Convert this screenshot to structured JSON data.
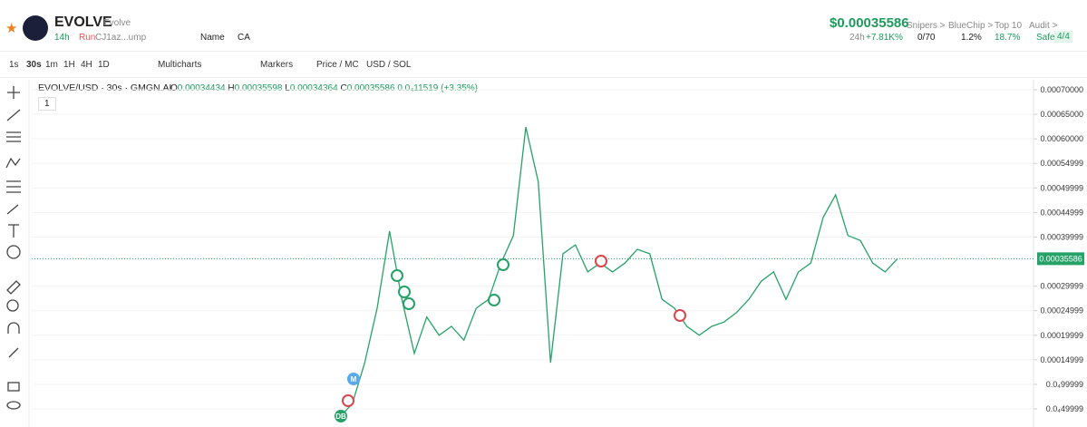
{
  "header": {
    "symbol": "EVOLVE",
    "name": "Evolve",
    "age": "14h",
    "status": "Run",
    "address": "CJ1az...ump",
    "name_search": "Name",
    "ca_search": "CA",
    "price": "$0.00035586",
    "change_label": "24h",
    "change": "+7.81K%",
    "snipers_label": "Snipers >",
    "snipers": "0/70",
    "bluechip_label": "BlueChip >",
    "bluechip": "1.2%",
    "top10_label": "Top 10",
    "top10": "18.7%",
    "audit_label": "Audit >",
    "audit_status": "Safe",
    "audit_score": "4/4"
  },
  "toolbar": {
    "intervals": [
      "1s",
      "30s",
      "1m",
      "1H",
      "4H",
      "1D"
    ],
    "multicharts": "Multicharts",
    "markers": "Markers",
    "price_mc": "Price / MC",
    "currency": "USD / SOL"
  },
  "legend": {
    "pair": "EVOLVE/USD · 30s · GMGN.AI",
    "open_label": "O",
    "open": "0.00034434",
    "high_label": "H",
    "high": "0.00035598",
    "low_label": "L",
    "low": "0.00034364",
    "close_label": "C",
    "close": "0.00035586",
    "change": "0.0₄11519 (+3.35%)",
    "indicator_count": "1"
  },
  "chart_data": {
    "type": "line",
    "color": "#26a269",
    "values": [
      3.34e-05,
      6.1e-05,
      0.000144,
      0.000255,
      0.000412,
      0.000273,
      0.000163,
      0.000237,
      0.0002,
      0.000218,
      0.00019,
      0.000255,
      0.000273,
      0.000347,
      0.000403,
      0.000624,
      0.000513,
      0.000144,
      0.000366,
      0.000384,
      0.000329,
      0.000347,
      0.000329,
      0.000347,
      0.000375,
      0.000366,
      0.000273,
      0.000255,
      0.000218,
      0.0002,
      0.000218,
      0.000227,
      0.000246,
      0.000273,
      0.00031,
      0.000329,
      0.000273,
      0.000329,
      0.000347,
      0.00044,
      0.000486,
      0.000403,
      0.000393,
      0.000347,
      0.000329,
      0.00035586
    ],
    "current_price": 0.00035586,
    "ylim": [
      1.31e-05,
      0.0007203
    ],
    "yticks": [
      {
        "value": 0.0007,
        "label": "0.00070000"
      },
      {
        "value": 0.00065,
        "label": "0.00065000"
      },
      {
        "value": 0.0006,
        "label": "0.00060000"
      },
      {
        "value": 0.00054999,
        "label": "0.00054999"
      },
      {
        "value": 0.00049999,
        "label": "0.00049999"
      },
      {
        "value": 0.00044999,
        "label": "0.00044999"
      },
      {
        "value": 0.00039999,
        "label": "0.00039999"
      },
      {
        "value": 0.00029999,
        "label": "0.00029999"
      },
      {
        "value": 0.00024999,
        "label": "0.00024999"
      },
      {
        "value": 0.00019999,
        "label": "0.00019999"
      },
      {
        "value": 0.00014999,
        "label": "0.00014999"
      },
      {
        "value": 9.9999e-05,
        "label": "0.0₄99999"
      },
      {
        "value": 4.9999e-05,
        "label": "0.0₄49999"
      }
    ],
    "grid": true,
    "annotations": [
      "M",
      "DB"
    ]
  }
}
